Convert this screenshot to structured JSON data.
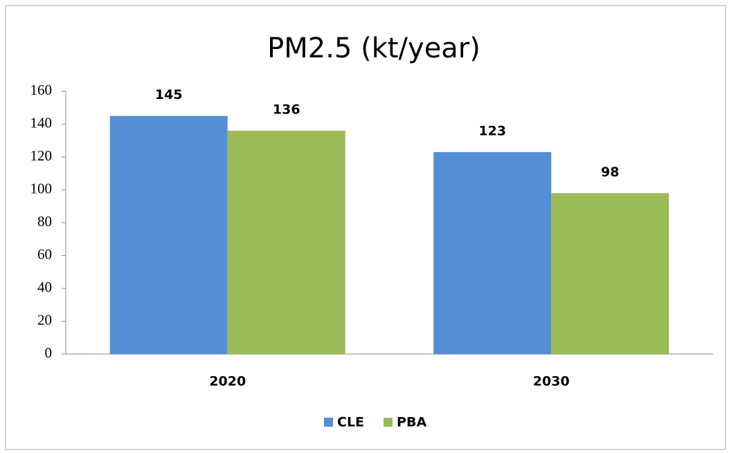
{
  "chart_data": {
    "type": "bar",
    "title": "PM2.5 (kt/year)",
    "categories": [
      "2020",
      "2030"
    ],
    "series": [
      {
        "name": "CLE",
        "color": "#558ed5",
        "values": [
          145,
          123
        ]
      },
      {
        "name": "PBA",
        "color": "#9bbb59",
        "values": [
          136,
          98
        ]
      }
    ],
    "ylim": [
      0,
      160
    ],
    "yticks": [
      0,
      20,
      40,
      60,
      80,
      100,
      120,
      140,
      160
    ],
    "grid": false,
    "legend": "bottom"
  }
}
